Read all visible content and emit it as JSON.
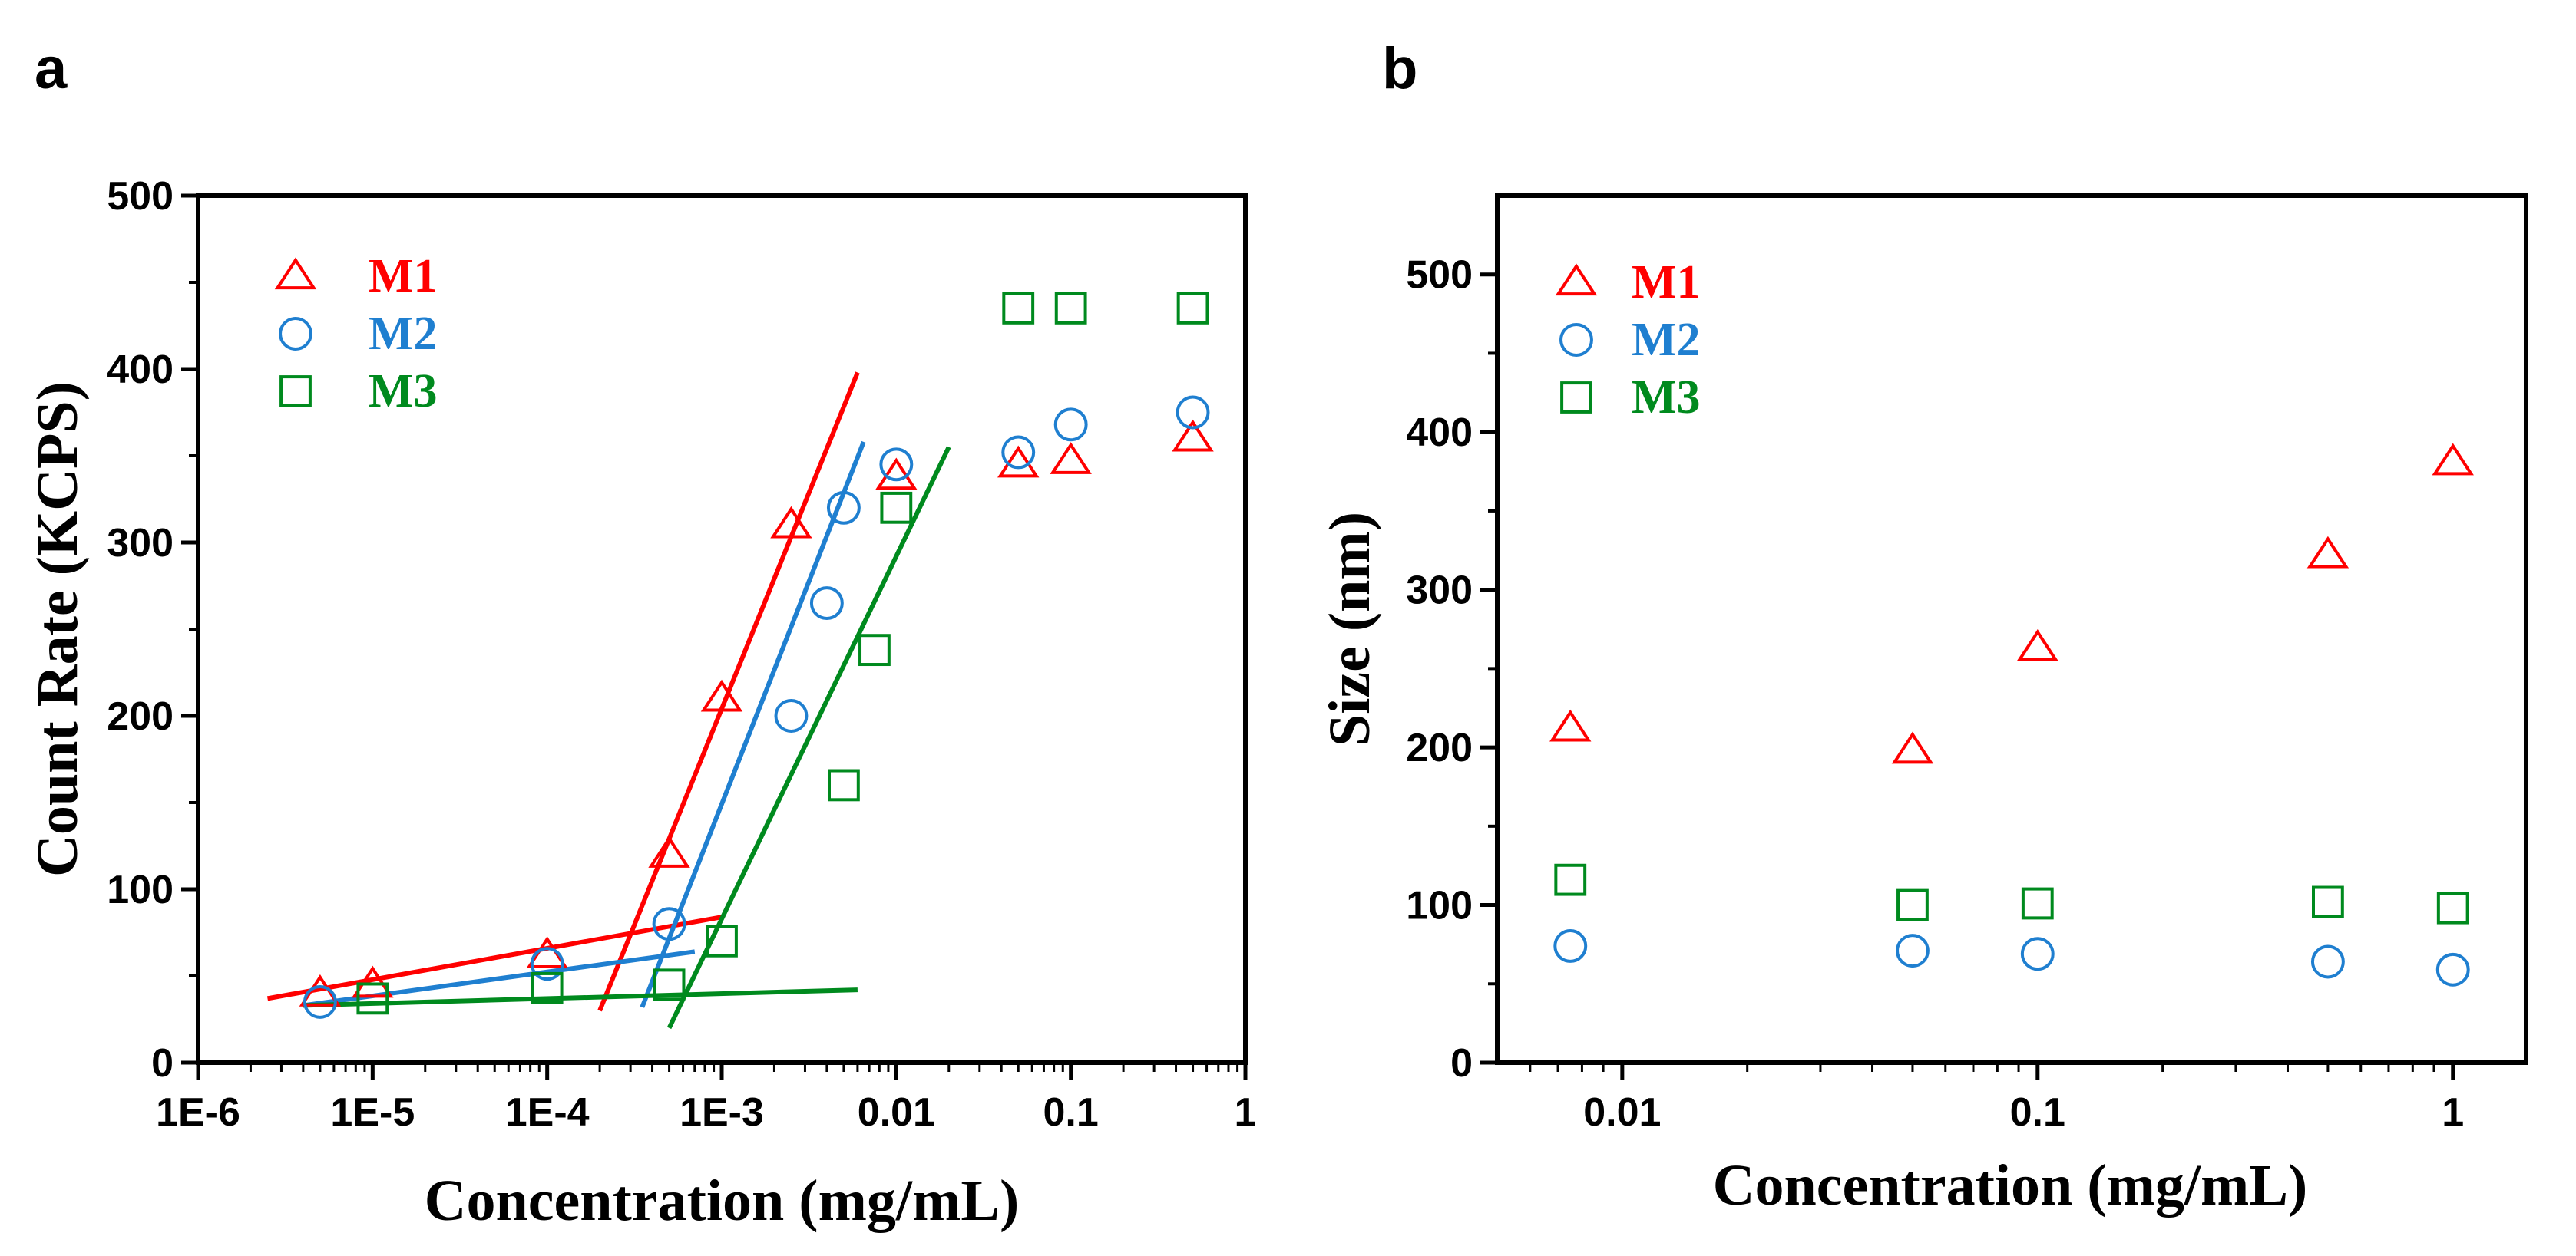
{
  "colors": {
    "M1": "#ff0000",
    "M2": "#1f7fd0",
    "M3": "#008a1e",
    "axis": "#000000"
  },
  "chart_data": [
    {
      "panel": "a",
      "type": "scatter",
      "xscale": "log",
      "xlabel": "Concentration (mg/mL)",
      "ylabel": "Count Rate (KCPS)",
      "xlim": [
        1e-06,
        1
      ],
      "ylim": [
        0,
        500
      ],
      "xticks": [
        1e-06,
        1e-05,
        0.0001,
        0.001,
        0.01,
        0.1,
        1
      ],
      "xtick_labels": [
        "1E-6",
        "1E-5",
        "1E-4",
        "1E-3",
        "0.01",
        "0.1",
        "1"
      ],
      "yticks": [
        0,
        100,
        200,
        300,
        400,
        500
      ],
      "ytick_labels": [
        "0",
        "100",
        "200",
        "300",
        "400",
        "500"
      ],
      "legend_position": "top-left",
      "series": [
        {
          "name": "M1",
          "marker": "triangle",
          "x": [
            5e-06,
            1e-05,
            0.0001,
            0.0005,
            0.001,
            0.0025,
            0.01,
            0.05,
            0.1,
            0.5
          ],
          "y": [
            40,
            45,
            62,
            120,
            210,
            310,
            338,
            345,
            347,
            360
          ]
        },
        {
          "name": "M2",
          "marker": "circle",
          "x": [
            5e-06,
            0.0001,
            0.0005,
            0.0025,
            0.004,
            0.005,
            0.01,
            0.05,
            0.1,
            0.5
          ],
          "y": [
            35,
            57,
            80,
            200,
            265,
            320,
            345,
            352,
            368,
            375
          ]
        },
        {
          "name": "M3",
          "marker": "square",
          "x": [
            1e-05,
            0.0001,
            0.0005,
            0.001,
            0.005,
            0.0075,
            0.01,
            0.05,
            0.1,
            0.5
          ],
          "y": [
            37,
            43,
            45,
            70,
            160,
            238,
            320,
            435,
            435,
            435
          ]
        }
      ],
      "fit_lines": [
        {
          "series": "M1",
          "x": [
            2.5e-06,
            0.001
          ],
          "y": [
            37,
            84
          ]
        },
        {
          "series": "M1",
          "x": [
            0.0002,
            0.006
          ],
          "y": [
            30,
            398
          ]
        },
        {
          "series": "M2",
          "x": [
            4e-06,
            0.0007
          ],
          "y": [
            33,
            64
          ]
        },
        {
          "series": "M2",
          "x": [
            0.00035,
            0.0065
          ],
          "y": [
            32,
            358
          ]
        },
        {
          "series": "M3",
          "x": [
            4e-06,
            0.006
          ],
          "y": [
            33,
            42
          ]
        },
        {
          "series": "M3",
          "x": [
            0.0005,
            0.02
          ],
          "y": [
            20,
            355
          ]
        }
      ]
    },
    {
      "panel": "b",
      "type": "scatter",
      "xscale": "log",
      "xlabel": "Concentration (mg/mL)",
      "ylabel": "Size (nm)",
      "xlim": [
        0.005,
        1.5
      ],
      "ylim": [
        0,
        550
      ],
      "xticks": [
        0.01,
        0.1,
        1
      ],
      "xtick_labels": [
        "0.01",
        "0.1",
        "1"
      ],
      "yticks": [
        0,
        100,
        200,
        300,
        400,
        500
      ],
      "ytick_labels": [
        "0",
        "100",
        "200",
        "300",
        "400",
        "500"
      ],
      "legend_position": "top-left",
      "series": [
        {
          "name": "M1",
          "marker": "triangle",
          "x": [
            0.0075,
            0.05,
            0.1,
            0.5,
            1
          ],
          "y": [
            212,
            198,
            263,
            322,
            381
          ]
        },
        {
          "name": "M2",
          "marker": "circle",
          "x": [
            0.0075,
            0.05,
            0.1,
            0.5,
            1
          ],
          "y": [
            74,
            71,
            69,
            64,
            59
          ]
        },
        {
          "name": "M3",
          "marker": "square",
          "x": [
            0.0075,
            0.05,
            0.1,
            0.5,
            1
          ],
          "y": [
            116,
            100,
            101,
            102,
            98
          ]
        }
      ]
    }
  ]
}
